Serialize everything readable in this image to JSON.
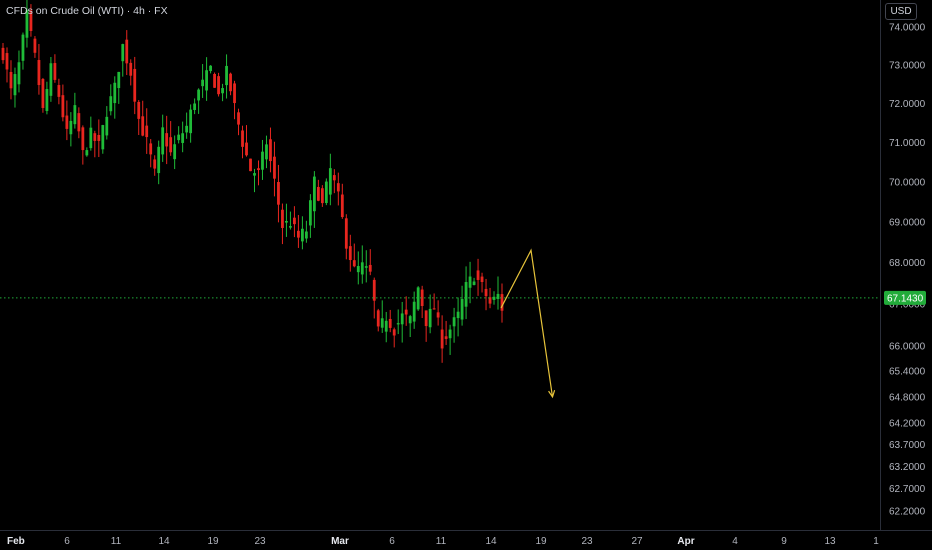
{
  "header": {
    "title": "CFDs on Crude Oil (WTI) · 4h · FX",
    "currency": "USD"
  },
  "colors": {
    "background": "#000000",
    "up": "#1fbb38",
    "down": "#e8261f",
    "last_price": "#22ab3a",
    "drawing": "#e6c33a",
    "axis_text": "#b2b5be",
    "divider": "#2a2e39"
  },
  "chart_data": {
    "type": "candlestick",
    "timeframe": "4h",
    "last_price": 67.143,
    "last_price_label": "67.1430",
    "y_scale": "log",
    "ylim": [
      61.9,
      74.4
    ],
    "y_ticks": [
      "74.0000",
      "73.0000",
      "72.0000",
      "71.0000",
      "70.0000",
      "69.0000",
      "68.0000",
      "67.0000",
      "66.0000",
      "65.4000",
      "64.8000",
      "64.2000",
      "63.7000",
      "63.2000",
      "62.7000",
      "62.2000"
    ],
    "x_ticks": [
      "Feb",
      "6",
      "11",
      "14",
      "19",
      "23",
      "Mar",
      "6",
      "11",
      "14",
      "19",
      "23",
      "27",
      "Apr",
      "4",
      "9",
      "13",
      "1"
    ],
    "x_tick_bold": [
      "Feb",
      "Mar",
      "Apr"
    ],
    "price_path": [
      [
        0,
        73.3
      ],
      [
        2,
        72.3
      ],
      [
        4,
        73.0
      ],
      [
        6,
        74.3
      ],
      [
        8,
        73.2
      ],
      [
        10,
        71.8
      ],
      [
        12,
        72.9
      ],
      [
        14,
        72.2
      ],
      [
        16,
        71.2
      ],
      [
        18,
        71.8
      ],
      [
        20,
        70.7
      ],
      [
        22,
        71.2
      ],
      [
        24,
        70.9
      ],
      [
        26,
        71.8
      ],
      [
        28,
        72.4
      ],
      [
        30,
        73.5
      ],
      [
        32,
        72.8
      ],
      [
        34,
        71.6
      ],
      [
        36,
        71.0
      ],
      [
        38,
        70.2
      ],
      [
        40,
        71.3
      ],
      [
        42,
        70.7
      ],
      [
        44,
        71.1
      ],
      [
        46,
        71.4
      ],
      [
        48,
        72.1
      ],
      [
        50,
        72.5
      ],
      [
        52,
        72.9
      ],
      [
        54,
        72.2
      ],
      [
        56,
        72.8
      ],
      [
        58,
        71.9
      ],
      [
        60,
        71.0
      ],
      [
        62,
        70.3
      ],
      [
        64,
        70.2
      ],
      [
        66,
        71.0
      ],
      [
        68,
        70.0
      ],
      [
        70,
        68.9
      ],
      [
        72,
        69.0
      ],
      [
        74,
        68.6
      ],
      [
        76,
        68.8
      ],
      [
        78,
        70.0
      ],
      [
        80,
        69.4
      ],
      [
        82,
        70.3
      ],
      [
        84,
        69.6
      ],
      [
        86,
        68.5
      ],
      [
        88,
        67.8
      ],
      [
        90,
        67.9
      ],
      [
        92,
        67.7
      ],
      [
        94,
        66.3
      ],
      [
        96,
        66.7
      ],
      [
        98,
        66.4
      ],
      [
        100,
        66.7
      ],
      [
        102,
        66.6
      ],
      [
        104,
        67.4
      ],
      [
        106,
        66.6
      ],
      [
        108,
        66.9
      ],
      [
        110,
        66.1
      ],
      [
        112,
        66.4
      ],
      [
        114,
        66.7
      ],
      [
        116,
        67.4
      ],
      [
        118,
        67.7
      ],
      [
        120,
        67.4
      ],
      [
        122,
        67.0
      ],
      [
        124,
        67.2
      ],
      [
        125,
        66.9
      ]
    ],
    "projection": {
      "style": "arrow",
      "points": [
        {
          "date": "Mar 15",
          "price": 66.9
        },
        {
          "date": "Mar 18",
          "price": 68.3
        },
        {
          "date": "Mar 20",
          "price": 64.8
        }
      ]
    }
  }
}
